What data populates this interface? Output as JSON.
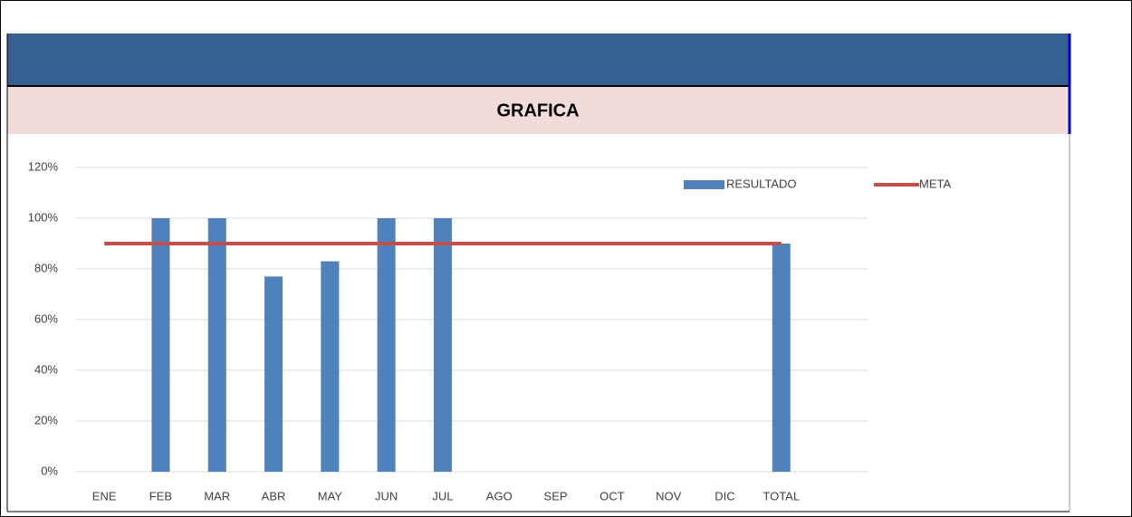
{
  "chart_data": {
    "type": "bar",
    "title": "GRAFICA",
    "categories": [
      "ENE",
      "FEB",
      "MAR",
      "ABR",
      "MAY",
      "JUN",
      "JUL",
      "AGO",
      "SEP",
      "OCT",
      "NOV",
      "DIC",
      "TOTAL"
    ],
    "series": [
      {
        "name": "RESULTADO",
        "type": "bar",
        "color": "#4f81bd",
        "values": [
          null,
          100,
          100,
          77,
          83,
          100,
          100,
          null,
          null,
          null,
          null,
          null,
          90
        ]
      },
      {
        "name": "META",
        "type": "line",
        "color": "#c0504d",
        "values": [
          90,
          90,
          90,
          90,
          90,
          90,
          90,
          90,
          90,
          90,
          90,
          90,
          90
        ]
      }
    ],
    "ylim": [
      0,
      120
    ],
    "yticks": [
      {
        "value": 0,
        "label": "0%"
      },
      {
        "value": 20,
        "label": "20%"
      },
      {
        "value": 40,
        "label": "40%"
      },
      {
        "value": 60,
        "label": "60%"
      },
      {
        "value": 80,
        "label": "80%"
      },
      {
        "value": 100,
        "label": "100%"
      },
      {
        "value": 120,
        "label": "120%"
      }
    ],
    "grid": true,
    "legend": "top-right"
  }
}
